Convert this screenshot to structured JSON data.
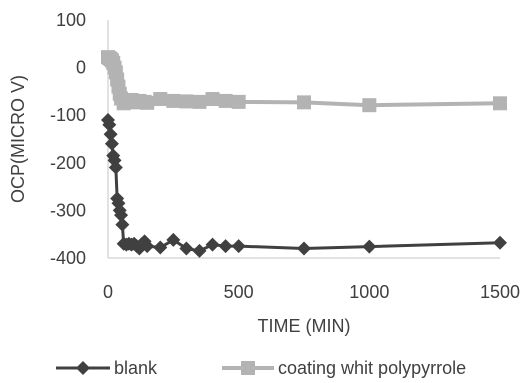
{
  "chart_data": {
    "type": "line",
    "xlabel": "TIME (MIN)",
    "ylabel": "OCP(MICRO V)",
    "xlim": [
      0,
      1500
    ],
    "ylim": [
      -400,
      100
    ],
    "xticks": [
      0,
      500,
      1000,
      1500
    ],
    "yticks": [
      100,
      0,
      -100,
      -200,
      -300,
      -400
    ],
    "grid": "none",
    "legend_position": "bottom",
    "series": [
      {
        "name": "blank",
        "color": "#404040",
        "marker": "diamond",
        "x": [
          0,
          5,
          10,
          15,
          20,
          25,
          30,
          35,
          40,
          45,
          50,
          55,
          60,
          70,
          80,
          90,
          100,
          110,
          120,
          130,
          140,
          150,
          200,
          250,
          300,
          350,
          400,
          450,
          500,
          750,
          1000,
          1500
        ],
        "y": [
          -110,
          -120,
          -140,
          -160,
          -185,
          -195,
          -210,
          -275,
          -285,
          -300,
          -310,
          -330,
          -370,
          -372,
          -370,
          -372,
          -370,
          -375,
          -380,
          -370,
          -365,
          -375,
          -378,
          -362,
          -380,
          -385,
          -372,
          -375,
          -375,
          -380,
          -376,
          -368
        ]
      },
      {
        "name": "coating whit polypyrrole",
        "color": "#b3b3b3",
        "marker": "square",
        "x": [
          0,
          5,
          10,
          15,
          20,
          25,
          30,
          35,
          40,
          45,
          50,
          60,
          70,
          80,
          90,
          100,
          120,
          140,
          150,
          200,
          250,
          300,
          350,
          400,
          450,
          500,
          750,
          1000,
          1500
        ],
        "y": [
          22,
          20,
          18,
          15,
          10,
          0,
          -10,
          -25,
          -40,
          -55,
          -65,
          -75,
          -70,
          -72,
          -68,
          -73,
          -70,
          -72,
          -74,
          -66,
          -70,
          -71,
          -72,
          -66,
          -70,
          -72,
          -73,
          -79,
          -75
        ]
      }
    ]
  }
}
